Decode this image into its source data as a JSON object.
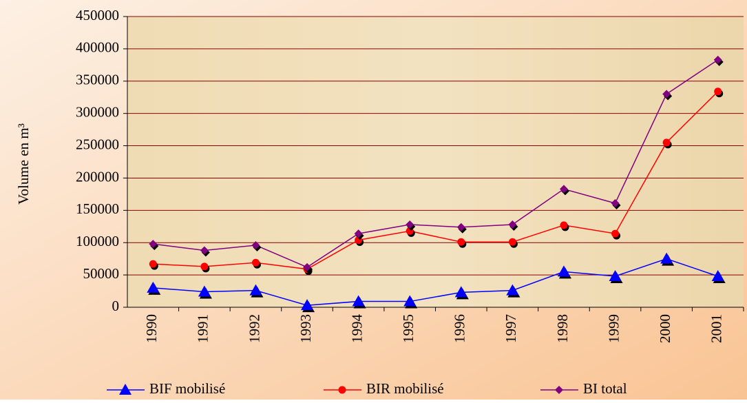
{
  "chart_data": {
    "type": "line",
    "y_label": "Volume en m³",
    "categories": [
      "1990",
      "1991",
      "1992",
      "1993",
      "1994",
      "1995",
      "1996",
      "1997",
      "1998",
      "1999",
      "2000",
      "2001"
    ],
    "series": [
      {
        "name": "BIF mobilisé",
        "color": "#0000ff",
        "marker": "triangle",
        "values": [
          30000,
          24000,
          26000,
          3000,
          9000,
          9000,
          23000,
          26000,
          55000,
          48000,
          75000,
          48000
        ]
      },
      {
        "name": "BIR mobilisé",
        "color": "#ff0000",
        "marker": "circle",
        "values": [
          67000,
          63000,
          69000,
          59000,
          104000,
          118000,
          101000,
          101000,
          127000,
          114000,
          255000,
          334000
        ]
      },
      {
        "name": "BI total",
        "color": "#800080",
        "marker": "diamond",
        "values": [
          98000,
          88000,
          96000,
          62000,
          114000,
          128000,
          124000,
          128000,
          183000,
          161000,
          330000,
          383000
        ]
      }
    ],
    "ylim": [
      0,
      450000
    ],
    "yticks": [
      0,
      50000,
      100000,
      150000,
      200000,
      250000,
      300000,
      350000,
      400000,
      450000
    ],
    "grid": true
  }
}
